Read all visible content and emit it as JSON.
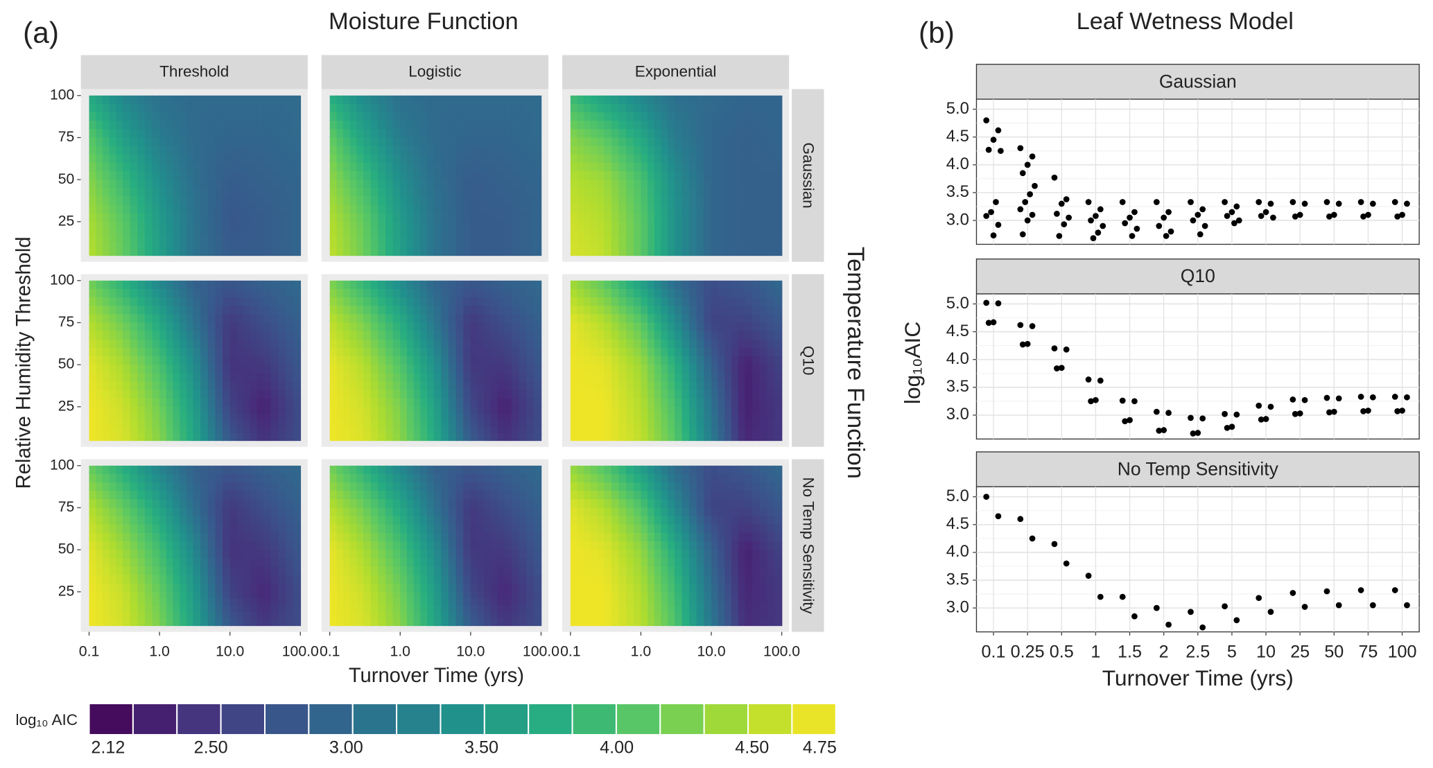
{
  "chart_data": [
    {
      "type": "contour",
      "label": "(a)",
      "title": "Moisture Function",
      "columns": [
        "Threshold",
        "Logistic",
        "Exponential"
      ],
      "rows": [
        "Gaussian",
        "Q10",
        "No Temp Sensitivity"
      ],
      "row_title": "Temperature Function",
      "xlabel": "Turnover Time (yrs)",
      "ylabel": "Relative Humidity Threshold",
      "log_x": true,
      "xlim": [
        0.1,
        100
      ],
      "xticks": [
        0.1,
        {
          "value": 1,
          "label": "1.0"
        },
        {
          "value": 10,
          "label": "10.0"
        },
        {
          "value": 100,
          "label": "100.0"
        }
      ],
      "ylim": [
        5,
        100
      ],
      "yticks": [
        25,
        50,
        75,
        100
      ],
      "grid_x": [
        0.1,
        0.3,
        1,
        3,
        10,
        30,
        100
      ],
      "grid_y": [
        100,
        75,
        50,
        25,
        5
      ],
      "panels": [
        [
          [
            [
              3.7,
              3.3,
              3.05,
              3.0,
              3.0,
              3.0,
              3.0
            ],
            [
              4.1,
              3.6,
              3.2,
              3.0,
              2.95,
              2.95,
              3.0
            ],
            [
              4.3,
              3.9,
              3.4,
              3.05,
              2.85,
              2.9,
              2.95
            ],
            [
              4.45,
              4.1,
              3.55,
              3.1,
              2.8,
              2.85,
              2.95
            ],
            [
              4.5,
              4.15,
              3.6,
              3.1,
              2.85,
              2.85,
              2.95
            ]
          ],
          [
            [
              3.75,
              3.35,
              3.05,
              3.0,
              3.0,
              3.0,
              3.0
            ],
            [
              4.15,
              3.65,
              3.2,
              3.0,
              2.95,
              2.95,
              3.0
            ],
            [
              4.35,
              3.95,
              3.4,
              3.05,
              2.85,
              2.9,
              2.95
            ],
            [
              4.5,
              4.15,
              3.55,
              3.1,
              2.85,
              2.85,
              2.95
            ],
            [
              4.55,
              4.2,
              3.6,
              3.1,
              2.85,
              2.85,
              2.95
            ]
          ],
          [
            [
              3.9,
              3.6,
              3.3,
              3.05,
              3.0,
              2.95,
              2.95
            ],
            [
              4.3,
              4.1,
              3.7,
              3.2,
              2.95,
              2.9,
              2.95
            ],
            [
              4.5,
              4.4,
              4.0,
              3.4,
              2.95,
              2.9,
              2.9
            ],
            [
              4.6,
              4.5,
              4.1,
              3.45,
              2.95,
              2.9,
              2.9
            ],
            [
              4.65,
              4.55,
              4.1,
              3.45,
              2.95,
              2.9,
              2.9
            ]
          ]
        ],
        [
          [
            [
              4.2,
              3.8,
              3.3,
              2.9,
              2.8,
              2.9,
              3.0
            ],
            [
              4.5,
              4.2,
              3.7,
              3.1,
              2.5,
              2.7,
              2.9
            ],
            [
              4.7,
              4.45,
              4.0,
              3.4,
              2.45,
              2.5,
              2.8
            ],
            [
              4.75,
              4.6,
              4.2,
              3.6,
              2.6,
              2.3,
              2.7
            ],
            [
              4.75,
              4.65,
              4.3,
              3.7,
              2.8,
              2.45,
              2.7
            ]
          ],
          [
            [
              4.25,
              3.85,
              3.35,
              2.95,
              2.8,
              2.9,
              3.0
            ],
            [
              4.55,
              4.25,
              3.75,
              3.15,
              2.5,
              2.7,
              2.9
            ],
            [
              4.72,
              4.5,
              4.05,
              3.45,
              2.5,
              2.5,
              2.8
            ],
            [
              4.75,
              4.62,
              4.25,
              3.65,
              2.65,
              2.3,
              2.7
            ],
            [
              4.75,
              4.67,
              4.32,
              3.75,
              2.85,
              2.45,
              2.7
            ]
          ],
          [
            [
              4.4,
              4.1,
              3.6,
              3.0,
              2.7,
              2.8,
              3.0
            ],
            [
              4.7,
              4.5,
              4.1,
              3.4,
              2.6,
              2.6,
              2.8
            ],
            [
              4.75,
              4.7,
              4.4,
              3.8,
              2.9,
              2.3,
              2.6
            ],
            [
              4.75,
              4.75,
              4.5,
              4.0,
              3.1,
              2.3,
              2.5
            ],
            [
              4.75,
              4.75,
              4.55,
              4.1,
              3.2,
              2.35,
              2.5
            ]
          ]
        ],
        [
          [
            [
              4.15,
              3.75,
              3.25,
              2.9,
              2.8,
              2.9,
              3.0
            ],
            [
              4.5,
              4.15,
              3.65,
              3.05,
              2.5,
              2.7,
              2.9
            ],
            [
              4.7,
              4.4,
              3.95,
              3.35,
              2.45,
              2.5,
              2.8
            ],
            [
              4.75,
              4.58,
              4.15,
              3.55,
              2.6,
              2.35,
              2.7
            ],
            [
              4.75,
              4.63,
              4.25,
              3.65,
              2.8,
              2.5,
              2.7
            ]
          ],
          [
            [
              4.2,
              3.8,
              3.3,
              2.9,
              2.8,
              2.9,
              3.0
            ],
            [
              4.52,
              4.2,
              3.7,
              3.1,
              2.5,
              2.7,
              2.9
            ],
            [
              4.72,
              4.45,
              4.0,
              3.4,
              2.5,
              2.5,
              2.8
            ],
            [
              4.75,
              4.6,
              4.2,
              3.6,
              2.65,
              2.35,
              2.7
            ],
            [
              4.75,
              4.65,
              4.3,
              3.7,
              2.85,
              2.5,
              2.7
            ]
          ],
          [
            [
              4.35,
              4.05,
              3.55,
              3.0,
              2.7,
              2.8,
              3.0
            ],
            [
              4.68,
              4.48,
              4.05,
              3.35,
              2.6,
              2.6,
              2.8
            ],
            [
              4.75,
              4.68,
              4.35,
              3.75,
              2.9,
              2.3,
              2.6
            ],
            [
              4.75,
              4.75,
              4.48,
              3.95,
              3.05,
              2.35,
              2.5
            ],
            [
              4.75,
              4.75,
              4.52,
              4.05,
              3.15,
              2.4,
              2.5
            ]
          ]
        ]
      ],
      "colorbar": {
        "label": "log₁₀ AIC",
        "clim": [
          2.05,
          4.81
        ],
        "swatches": 17,
        "ticks": [
          2.12,
          {
            "value": 2.5,
            "label": "2.50"
          },
          {
            "value": 3,
            "label": "3.00"
          },
          {
            "value": 3.5,
            "label": "3.50"
          },
          {
            "value": 4,
            "label": "4.00"
          },
          {
            "value": 4.5,
            "label": "4.50"
          },
          4.75
        ]
      },
      "colormap": [
        "#440154",
        "#472d7b",
        "#3b528b",
        "#2c728e",
        "#21918c",
        "#28ae80",
        "#5ec962",
        "#addc30",
        "#fde725"
      ]
    },
    {
      "type": "strip",
      "label": "(b)",
      "title": "Leaf Wetness Model",
      "xlabel": "Turnover Time (yrs)",
      "ylabel": "log₁₀AIC",
      "categories": [
        "0.1",
        "0.25",
        "0.5",
        "1",
        "1.5",
        "2",
        "2.5",
        "5",
        "10",
        "25",
        "50",
        "75",
        "100"
      ],
      "ylim": [
        2.57,
        5.18
      ],
      "yticks": [
        {
          "value": 3,
          "label": "3.0"
        },
        3.5,
        {
          "value": 4,
          "label": "4.0"
        },
        4.5,
        {
          "value": 5,
          "label": "5.0"
        }
      ],
      "grid": true,
      "color": "#000000",
      "facets": [
        {
          "name": "Gaussian",
          "values": [
            [
              4.8,
              4.62,
              4.45,
              4.27,
              4.25,
              3.33,
              3.15,
              3.08,
              2.92,
              2.73
            ],
            [
              4.3,
              4.15,
              4.0,
              3.85,
              3.62,
              3.47,
              3.33,
              3.2,
              3.1,
              3.0,
              2.75
            ],
            [
              3.77,
              3.38,
              3.3,
              3.12,
              3.05,
              2.93,
              2.72
            ],
            [
              3.33,
              3.2,
              3.08,
              3.0,
              2.9,
              2.78,
              2.68
            ],
            [
              3.33,
              3.15,
              3.05,
              2.95,
              2.85,
              2.72
            ],
            [
              3.33,
              3.15,
              3.05,
              2.9,
              2.8,
              2.72
            ],
            [
              3.33,
              3.2,
              3.1,
              3.0,
              2.9,
              2.75
            ],
            [
              3.33,
              3.25,
              3.15,
              3.08,
              3.0,
              2.95
            ],
            [
              3.33,
              3.3,
              3.15,
              3.08,
              3.05
            ],
            [
              3.33,
              3.3,
              3.1,
              3.07
            ],
            [
              3.33,
              3.3,
              3.1,
              3.07
            ],
            [
              3.33,
              3.3,
              3.1,
              3.07
            ],
            [
              3.33,
              3.3,
              3.1,
              3.07
            ]
          ]
        },
        {
          "name": "Q10",
          "values": [
            [
              5.02,
              5.01,
              4.67,
              4.66
            ],
            [
              4.62,
              4.6,
              4.28,
              4.27
            ],
            [
              4.2,
              4.18,
              3.85,
              3.84
            ],
            [
              3.64,
              3.62,
              3.27,
              3.25
            ],
            [
              3.26,
              3.25,
              2.91,
              2.89
            ],
            [
              3.06,
              3.04,
              2.73,
              2.72
            ],
            [
              2.95,
              2.94,
              2.68,
              2.67
            ],
            [
              3.02,
              3.01,
              2.79,
              2.77
            ],
            [
              3.17,
              3.15,
              2.93,
              2.92
            ],
            [
              3.28,
              3.27,
              3.03,
              3.02
            ],
            [
              3.31,
              3.3,
              3.06,
              3.05
            ],
            [
              3.33,
              3.32,
              3.08,
              3.07
            ],
            [
              3.33,
              3.32,
              3.08,
              3.07
            ]
          ]
        },
        {
          "name": "No Temp Sensitivity",
          "values": [
            [
              5.0,
              4.65
            ],
            [
              4.6,
              4.25
            ],
            [
              4.15,
              3.8
            ],
            [
              3.58,
              3.2
            ],
            [
              3.2,
              2.85
            ],
            [
              3.0,
              2.7
            ],
            [
              2.93,
              2.65
            ],
            [
              3.03,
              2.78
            ],
            [
              3.18,
              2.93
            ],
            [
              3.27,
              3.02
            ],
            [
              3.3,
              3.05
            ],
            [
              3.32,
              3.05
            ],
            [
              3.32,
              3.05
            ]
          ]
        }
      ]
    }
  ]
}
